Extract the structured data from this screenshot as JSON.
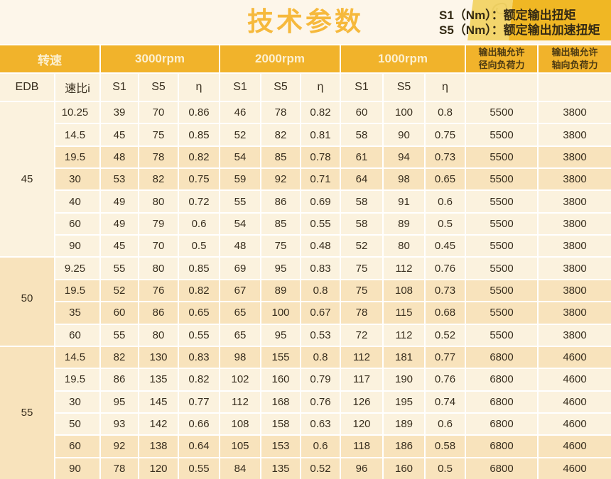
{
  "header": {
    "title": "技术参数",
    "legend": [
      "S1（Nm）：额定输出扭矩",
      "S5（Nm）：额定输出加速扭矩"
    ]
  },
  "colors": {
    "gold_header": "#F1B32B",
    "gold_legend_block": "#F0B724",
    "pale_gold_band": "#F3D56C",
    "page_cream": "#FDF6EA",
    "cell_cream": "#FBF2DE",
    "row_highlight": "#F8E3BC",
    "title_gold": "#F6B93C",
    "dark_text": "#382E1E"
  },
  "table": {
    "header_row1": [
      {
        "label": "转速",
        "span": 2
      },
      {
        "label": "3000rpm",
        "span": 3
      },
      {
        "label": "2000rpm",
        "span": 3
      },
      {
        "label": "1000rpm",
        "span": 3
      },
      {
        "lines": [
          "输出轴允许",
          "径向负荷力"
        ],
        "span": 1
      },
      {
        "lines": [
          "输出轴允许",
          "轴向负荷力"
        ],
        "span": 1
      }
    ],
    "header_row2": [
      "EDB",
      "速比i",
      "S1",
      "S5",
      "η",
      "S1",
      "S5",
      "η",
      "S1",
      "S5",
      "η",
      "",
      ""
    ],
    "groups": [
      {
        "edb": "45",
        "edb_highlight": false,
        "edb_label_valign": "center",
        "rows": [
          {
            "ratio": "10.25",
            "highlight": false,
            "values": [
              "39",
              "70",
              "0.86",
              "46",
              "78",
              "0.82",
              "60",
              "100",
              "0.8",
              "5500",
              "3800"
            ]
          },
          {
            "ratio": "14.5",
            "highlight": false,
            "values": [
              "45",
              "75",
              "0.85",
              "52",
              "82",
              "0.81",
              "58",
              "90",
              "0.75",
              "5500",
              "3800"
            ]
          },
          {
            "ratio": "19.5",
            "highlight": true,
            "values": [
              "48",
              "78",
              "0.82",
              "54",
              "85",
              "0.78",
              "61",
              "94",
              "0.73",
              "5500",
              "3800"
            ]
          },
          {
            "ratio": "30",
            "highlight": true,
            "values": [
              "53",
              "82",
              "0.75",
              "59",
              "92",
              "0.71",
              "64",
              "98",
              "0.65",
              "5500",
              "3800"
            ]
          },
          {
            "ratio": "40",
            "highlight": false,
            "values": [
              "49",
              "80",
              "0.72",
              "55",
              "86",
              "0.69",
              "58",
              "91",
              "0.6",
              "5500",
              "3800"
            ]
          },
          {
            "ratio": "60",
            "highlight": false,
            "values": [
              "49",
              "79",
              "0.6",
              "54",
              "85",
              "0.55",
              "58",
              "89",
              "0.5",
              "5500",
              "3800"
            ]
          },
          {
            "ratio": "90",
            "highlight": false,
            "values": [
              "45",
              "70",
              "0.5",
              "48",
              "75",
              "0.48",
              "52",
              "80",
              "0.45",
              "5500",
              "3800"
            ]
          }
        ]
      },
      {
        "edb": "50",
        "edb_highlight": true,
        "edb_label_valign": "bottom",
        "rows": [
          {
            "ratio": "9.25",
            "highlight": false,
            "values": [
              "55",
              "80",
              "0.85",
              "69",
              "95",
              "0.83",
              "75",
              "112",
              "0.76",
              "5500",
              "3800"
            ]
          },
          {
            "ratio": "19.5",
            "highlight": true,
            "values": [
              "52",
              "76",
              "0.82",
              "67",
              "89",
              "0.8",
              "75",
              "108",
              "0.73",
              "5500",
              "3800"
            ]
          },
          {
            "ratio": "35",
            "highlight": true,
            "values": [
              "60",
              "86",
              "0.65",
              "65",
              "100",
              "0.67",
              "78",
              "115",
              "0.68",
              "5500",
              "3800"
            ]
          },
          {
            "ratio": "60",
            "highlight": false,
            "values": [
              "55",
              "80",
              "0.55",
              "65",
              "95",
              "0.53",
              "72",
              "112",
              "0.52",
              "5500",
              "3800"
            ]
          }
        ]
      },
      {
        "edb": "55",
        "edb_highlight": true,
        "edb_label_valign": "center",
        "rows": [
          {
            "ratio": "14.5",
            "highlight": true,
            "values": [
              "82",
              "130",
              "0.83",
              "98",
              "155",
              "0.8",
              "112",
              "181",
              "0.77",
              "6800",
              "4600"
            ]
          },
          {
            "ratio": "19.5",
            "highlight": false,
            "values": [
              "86",
              "135",
              "0.82",
              "102",
              "160",
              "0.79",
              "117",
              "190",
              "0.76",
              "6800",
              "4600"
            ]
          },
          {
            "ratio": "30",
            "highlight": false,
            "values": [
              "95",
              "145",
              "0.77",
              "112",
              "168",
              "0.76",
              "126",
              "195",
              "0.74",
              "6800",
              "4600"
            ]
          },
          {
            "ratio": "50",
            "highlight": false,
            "values": [
              "93",
              "142",
              "0.66",
              "108",
              "158",
              "0.63",
              "120",
              "189",
              "0.6",
              "6800",
              "4600"
            ]
          },
          {
            "ratio": "60",
            "highlight": true,
            "values": [
              "92",
              "138",
              "0.64",
              "105",
              "153",
              "0.6",
              "118",
              "186",
              "0.58",
              "6800",
              "4600"
            ]
          },
          {
            "ratio": "90",
            "highlight": true,
            "values": [
              "78",
              "120",
              "0.55",
              "84",
              "135",
              "0.52",
              "96",
              "160",
              "0.5",
              "6800",
              "4600"
            ]
          }
        ]
      }
    ]
  }
}
